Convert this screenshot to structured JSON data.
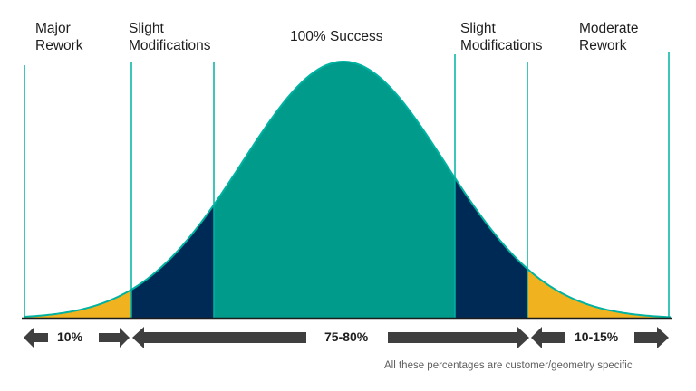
{
  "labels": {
    "major": [
      "Major",
      "Rework"
    ],
    "slight_left": [
      "Slight",
      "Modifications"
    ],
    "success": "100% Success",
    "slight_right": [
      "Slight",
      "Modifications"
    ],
    "moderate": [
      "Moderate",
      "Rework"
    ]
  },
  "percentages": {
    "left": "10%",
    "middle": "75-80%",
    "right": "10-15%"
  },
  "footnote": "All these percentages are customer/geometry specific",
  "colors": {
    "success": "#009B8A",
    "slight_modifications": "#002A56",
    "rework": "#F0B21E",
    "curve_outline": "#00B2A2",
    "arrows": "#3F3F3F",
    "baseline": "#1C1C1C"
  }
}
